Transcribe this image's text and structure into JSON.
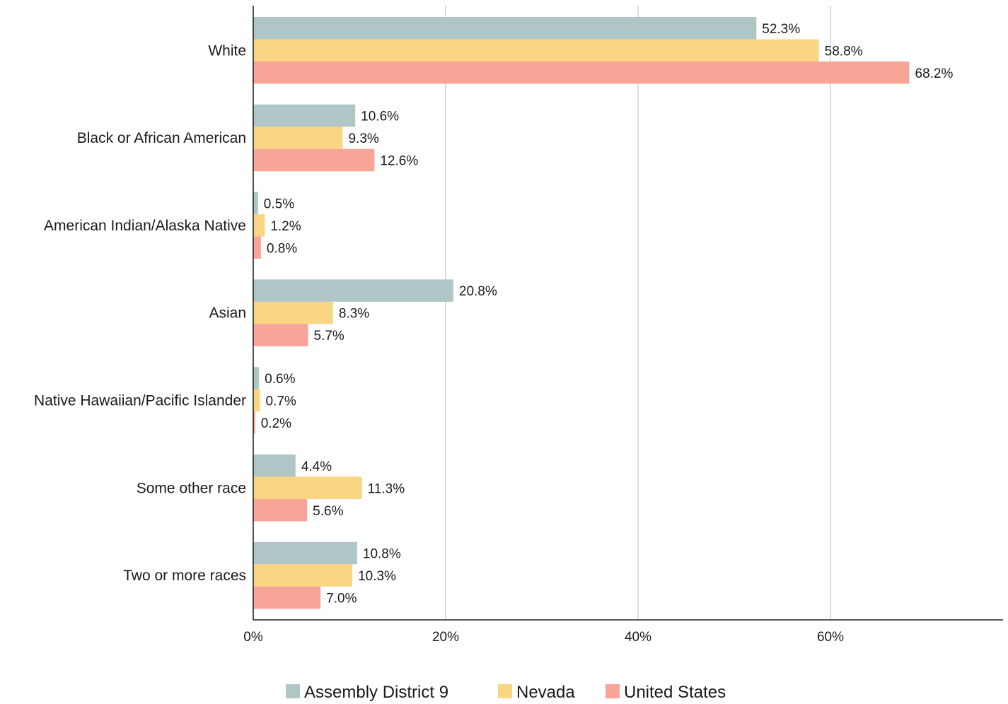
{
  "chart_data": {
    "type": "bar",
    "orientation": "horizontal",
    "categories": [
      "White",
      "Black or African American",
      "American Indian/Alaska Native",
      "Asian",
      "Native Hawaiian/Pacific Islander",
      "Some other race",
      "Two or more races"
    ],
    "series": [
      {
        "name": "Assembly District 9",
        "color": "#b0c6c6",
        "values": [
          52.3,
          10.6,
          0.5,
          20.8,
          0.6,
          4.4,
          10.8
        ]
      },
      {
        "name": "Nevada",
        "color": "#f9d584",
        "values": [
          58.8,
          9.3,
          1.2,
          8.3,
          0.7,
          11.3,
          10.3
        ]
      },
      {
        "name": "United States",
        "color": "#f8a598",
        "values": [
          68.2,
          12.6,
          0.8,
          5.7,
          0.2,
          5.6,
          7.0
        ]
      }
    ],
    "data_labels": [
      [
        "52.3%",
        "10.6%",
        "0.5%",
        "20.8%",
        "0.6%",
        "4.4%",
        "10.8%"
      ],
      [
        "58.8%",
        "9.3%",
        "1.2%",
        "8.3%",
        "0.7%",
        "11.3%",
        "10.3%"
      ],
      [
        "68.2%",
        "12.6%",
        "0.8%",
        "5.7%",
        "0.2%",
        "5.6%",
        "7.0%"
      ]
    ],
    "x_ticks": [
      0,
      20,
      40,
      60
    ],
    "x_tick_labels": [
      "0%",
      "20%",
      "40%",
      "60%"
    ],
    "xlim": [
      0,
      78
    ],
    "grid": true,
    "legend_position": "bottom",
    "title": "",
    "xlabel": "",
    "ylabel": ""
  }
}
